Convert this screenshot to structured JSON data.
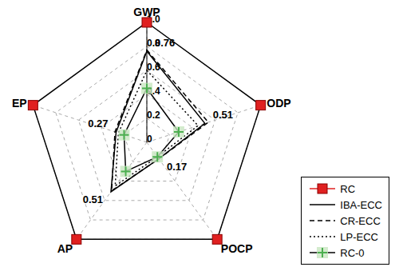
{
  "chart_data": {
    "type": "radar",
    "categories": [
      "GWP",
      "ODP",
      "POCP",
      "AP",
      "EP"
    ],
    "ylim": [
      0,
      1
    ],
    "yticks": [
      0,
      0.2,
      0.4,
      0.6,
      0.8,
      {
        "value": 1,
        "label": "1.0"
      }
    ],
    "grid": true,
    "legend": "lower right",
    "series": [
      {
        "name": "RC",
        "color": "#e02020",
        "marker": "square",
        "line_style": "solid",
        "values": [
          1,
          1,
          1,
          1,
          1
        ]
      },
      {
        "name": "IBA-ECC",
        "color": "#000000",
        "marker": "none",
        "line_style": "solid",
        "data_labels": true,
        "values": [
          0.76,
          0.51,
          0.17,
          0.51,
          0.27
        ]
      },
      {
        "name": "CR-ECC",
        "color": "#000000",
        "marker": "none",
        "line_style": "dashed",
        "values": [
          0.77,
          0.54,
          0.17,
          0.5,
          0.28
        ]
      },
      {
        "name": "LP-ECC",
        "color": "#000000",
        "marker": "none",
        "line_style": "dotted",
        "values": [
          0.6,
          0.45,
          0.15,
          0.45,
          0.25
        ]
      },
      {
        "name": "RC-0",
        "color": "#4caf50",
        "marker": "plus",
        "line_style": "solid",
        "values": [
          0.45,
          0.28,
          0.15,
          0.3,
          0.2
        ]
      }
    ]
  }
}
